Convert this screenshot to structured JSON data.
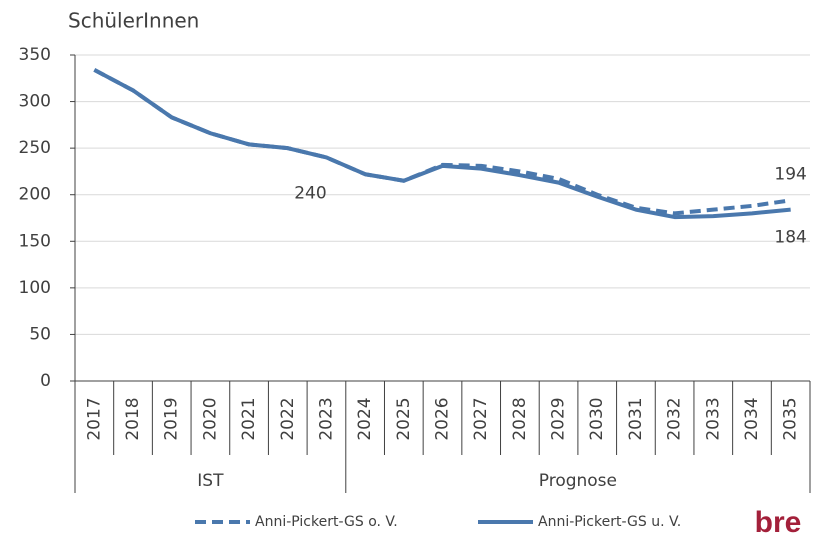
{
  "chart_data": {
    "type": "line",
    "title": "SchülerInnen",
    "categories": [
      "2017",
      "2018",
      "2019",
      "2020",
      "2021",
      "2022",
      "2023",
      "2024",
      "2025",
      "2026",
      "2027",
      "2028",
      "2029",
      "2030",
      "2031",
      "2032",
      "2033",
      "2034",
      "2035"
    ],
    "groups": [
      {
        "label": "IST",
        "count": 7
      },
      {
        "label": "Prognose",
        "count": 12
      }
    ],
    "series": [
      {
        "name": "Anni-Pickert-GS o. V.",
        "color": "#4a78ad",
        "dashed": true,
        "values": [
          334,
          312,
          283,
          266,
          254,
          250,
          240,
          222,
          215,
          232,
          231,
          225,
          217,
          200,
          186,
          180,
          184,
          188,
          194
        ],
        "value_labels": [
          null,
          null,
          null,
          null,
          null,
          null,
          null,
          null,
          null,
          null,
          null,
          null,
          null,
          null,
          null,
          null,
          null,
          null,
          "194"
        ]
      },
      {
        "name": "Anni-Pickert-GS u. V.",
        "color": "#4a78ad",
        "dashed": false,
        "values": [
          334,
          312,
          283,
          266,
          254,
          250,
          240,
          222,
          215,
          231,
          228,
          221,
          213,
          198,
          184,
          176,
          177,
          180,
          184
        ],
        "value_labels": [
          null,
          null,
          null,
          null,
          null,
          null,
          "240",
          null,
          null,
          null,
          null,
          null,
          null,
          null,
          null,
          null,
          null,
          null,
          "184"
        ]
      }
    ],
    "ylim": [
      0,
      350
    ],
    "yticks": [
      0,
      50,
      100,
      150,
      200,
      250,
      300,
      350
    ],
    "grid": true,
    "legend": "bottom",
    "logo": "bre"
  }
}
